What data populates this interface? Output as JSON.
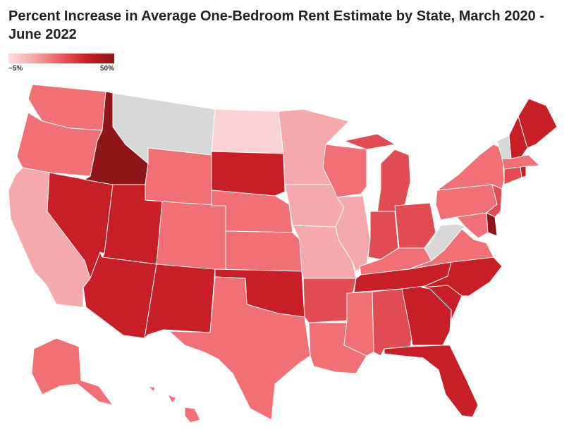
{
  "title": "Percent Increase in Average One-Bedroom Rent Estimate by State, March 2020 - June 2022",
  "legend": {
    "min_label": "−5%",
    "max_label": "50%",
    "min_value": -5,
    "max_value": 50,
    "no_data_color": "#d8d8d8"
  },
  "color_scale": {
    "very_light": "#fbd3d5",
    "light": "#f5a9ad",
    "medium": "#f07075",
    "medium_dark": "#e14b52",
    "dark": "#c81e25",
    "darkest": "#8e1518",
    "no_data": "#d8d8d8"
  },
  "states": [
    {
      "name": "Washington",
      "bin": "medium"
    },
    {
      "name": "Oregon",
      "bin": "medium"
    },
    {
      "name": "California",
      "bin": "light"
    },
    {
      "name": "Nevada",
      "bin": "dark"
    },
    {
      "name": "Idaho",
      "bin": "darkest"
    },
    {
      "name": "Montana",
      "bin": "no_data"
    },
    {
      "name": "Wyoming",
      "bin": "medium"
    },
    {
      "name": "Utah",
      "bin": "dark"
    },
    {
      "name": "Arizona",
      "bin": "dark"
    },
    {
      "name": "Colorado",
      "bin": "medium"
    },
    {
      "name": "New Mexico",
      "bin": "dark"
    },
    {
      "name": "North Dakota",
      "bin": "very_light"
    },
    {
      "name": "South Dakota",
      "bin": "dark"
    },
    {
      "name": "Nebraska",
      "bin": "medium"
    },
    {
      "name": "Kansas",
      "bin": "medium"
    },
    {
      "name": "Oklahoma",
      "bin": "dark"
    },
    {
      "name": "Texas",
      "bin": "medium"
    },
    {
      "name": "Minnesota",
      "bin": "light"
    },
    {
      "name": "Iowa",
      "bin": "light"
    },
    {
      "name": "Missouri",
      "bin": "light"
    },
    {
      "name": "Arkansas",
      "bin": "medium_dark"
    },
    {
      "name": "Louisiana",
      "bin": "medium"
    },
    {
      "name": "Wisconsin",
      "bin": "medium"
    },
    {
      "name": "Illinois",
      "bin": "light"
    },
    {
      "name": "Michigan",
      "bin": "medium_dark"
    },
    {
      "name": "Indiana",
      "bin": "medium_dark"
    },
    {
      "name": "Ohio",
      "bin": "medium_dark"
    },
    {
      "name": "Kentucky",
      "bin": "medium"
    },
    {
      "name": "Tennessee",
      "bin": "dark"
    },
    {
      "name": "Mississippi",
      "bin": "medium"
    },
    {
      "name": "Alabama",
      "bin": "medium_dark"
    },
    {
      "name": "Georgia",
      "bin": "dark"
    },
    {
      "name": "Florida",
      "bin": "dark"
    },
    {
      "name": "South Carolina",
      "bin": "dark"
    },
    {
      "name": "North Carolina",
      "bin": "dark"
    },
    {
      "name": "Virginia",
      "bin": "medium"
    },
    {
      "name": "West Virginia",
      "bin": "no_data"
    },
    {
      "name": "Maryland",
      "bin": "medium"
    },
    {
      "name": "Delaware",
      "bin": "darkest"
    },
    {
      "name": "Pennsylvania",
      "bin": "medium"
    },
    {
      "name": "New Jersey",
      "bin": "medium_dark"
    },
    {
      "name": "New York",
      "bin": "medium"
    },
    {
      "name": "Connecticut",
      "bin": "medium_dark"
    },
    {
      "name": "Rhode Island",
      "bin": "dark"
    },
    {
      "name": "Massachusetts",
      "bin": "medium"
    },
    {
      "name": "Vermont",
      "bin": "no_data"
    },
    {
      "name": "New Hampshire",
      "bin": "dark"
    },
    {
      "name": "Maine",
      "bin": "dark"
    },
    {
      "name": "Alaska",
      "bin": "medium"
    },
    {
      "name": "Hawaii",
      "bin": "medium"
    }
  ]
}
